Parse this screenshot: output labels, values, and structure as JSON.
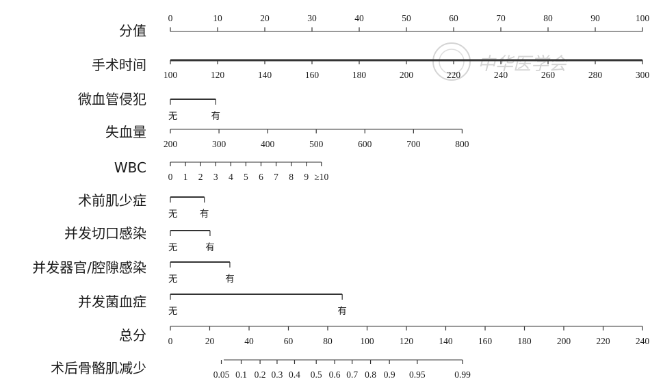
{
  "chart_data": {
    "type": "nomogram",
    "watermark": "中华医学会",
    "rows": [
      {
        "label": "分值",
        "kind": "top",
        "ticks": [
          {
            "t": "0",
            "v": 0
          },
          {
            "t": "10",
            "v": 10
          },
          {
            "t": "20",
            "v": 20
          },
          {
            "t": "30",
            "v": 30
          },
          {
            "t": "40",
            "v": 40
          },
          {
            "t": "50",
            "v": 50
          },
          {
            "t": "60",
            "v": 60
          },
          {
            "t": "70",
            "v": 70
          },
          {
            "t": "80",
            "v": 80
          },
          {
            "t": "90",
            "v": 90
          },
          {
            "t": "100",
            "v": 100
          }
        ]
      },
      {
        "label": "手术时间",
        "kind": "bottom",
        "ticks": [
          {
            "t": "100",
            "v": 0
          },
          {
            "t": "120",
            "v": 10
          },
          {
            "t": "140",
            "v": 20
          },
          {
            "t": "160",
            "v": 30
          },
          {
            "t": "180",
            "v": 40
          },
          {
            "t": "200",
            "v": 50
          },
          {
            "t": "220",
            "v": 60
          },
          {
            "t": "240",
            "v": 70
          },
          {
            "t": "260",
            "v": 80
          },
          {
            "t": "280",
            "v": 90
          },
          {
            "t": "300",
            "v": 100
          }
        ]
      },
      {
        "label": "微血管侵犯",
        "kind": "bottom",
        "ticks": [
          {
            "t": "无",
            "v": 0
          },
          {
            "t": "有",
            "v": 9.6
          }
        ]
      },
      {
        "label": "失血量",
        "kind": "bottom",
        "ticks": [
          {
            "t": "200",
            "v": 0
          },
          {
            "t": "300",
            "v": 10.3
          },
          {
            "t": "400",
            "v": 20.6
          },
          {
            "t": "500",
            "v": 30.9
          },
          {
            "t": "600",
            "v": 41.2
          },
          {
            "t": "700",
            "v": 51.5
          },
          {
            "t": "800",
            "v": 61.8
          }
        ]
      },
      {
        "label": "WBC",
        "kind": "bottom",
        "ticks": [
          {
            "t": "0",
            "v": 0
          },
          {
            "t": "1",
            "v": 3.2
          },
          {
            "t": "2",
            "v": 6.4
          },
          {
            "t": "3",
            "v": 9.6
          },
          {
            "t": "4",
            "v": 12.8
          },
          {
            "t": "5",
            "v": 16.0
          },
          {
            "t": "6",
            "v": 19.2
          },
          {
            "t": "7",
            "v": 22.4
          },
          {
            "t": "8",
            "v": 25.6
          },
          {
            "t": "9",
            "v": 28.8
          },
          {
            "t": "≥10",
            "v": 32.0
          }
        ]
      },
      {
        "label": "术前肌少症",
        "kind": "bottom",
        "ticks": [
          {
            "t": "无",
            "v": 0
          },
          {
            "t": "有",
            "v": 7.2
          }
        ]
      },
      {
        "label": "并发切口感染",
        "kind": "bottom",
        "ticks": [
          {
            "t": "无",
            "v": 0
          },
          {
            "t": "有",
            "v": 8.4
          }
        ]
      },
      {
        "label": "并发器官/腔隙感染",
        "kind": "bottom",
        "ticks": [
          {
            "t": "无",
            "v": 0
          },
          {
            "t": "有",
            "v": 12.6
          }
        ]
      },
      {
        "label": "并发菌血症",
        "kind": "bottom",
        "ticks": [
          {
            "t": "无",
            "v": 0
          },
          {
            "t": "有",
            "v": 36.4
          }
        ]
      },
      {
        "label": "总分",
        "kind": "bottom",
        "ticks": [
          {
            "t": "0",
            "v": 0
          },
          {
            "t": "20",
            "v": 8.33
          },
          {
            "t": "40",
            "v": 16.67
          },
          {
            "t": "60",
            "v": 25.0
          },
          {
            "t": "80",
            "v": 33.33
          },
          {
            "t": "100",
            "v": 41.67
          },
          {
            "t": "120",
            "v": 50.0
          },
          {
            "t": "140",
            "v": 58.33
          },
          {
            "t": "160",
            "v": 66.67
          },
          {
            "t": "180",
            "v": 75.0
          },
          {
            "t": "200",
            "v": 83.33
          },
          {
            "t": "220",
            "v": 91.67
          },
          {
            "t": "240",
            "v": 100
          }
        ]
      },
      {
        "label": "术后骨骼肌减少",
        "kind": "bottom",
        "ticks": [
          {
            "t": "0.05",
            "v": 10.8
          },
          {
            "t": "0.1",
            "v": 15.0
          },
          {
            "t": "0.2",
            "v": 19.0
          },
          {
            "t": "0.3",
            "v": 22.6
          },
          {
            "t": "0.4",
            "v": 26.3
          },
          {
            "t": "0.5",
            "v": 30.9
          },
          {
            "t": "0.6",
            "v": 34.8
          },
          {
            "t": "0.7",
            "v": 38.5
          },
          {
            "t": "0.8",
            "v": 42.4
          },
          {
            "t": "0.9",
            "v": 46.4
          },
          {
            "t": "0.95",
            "v": 52.3
          },
          {
            "t": "0.99",
            "v": 61.9
          }
        ],
        "line_range": [
          11.3,
          61.9
        ]
      }
    ]
  }
}
